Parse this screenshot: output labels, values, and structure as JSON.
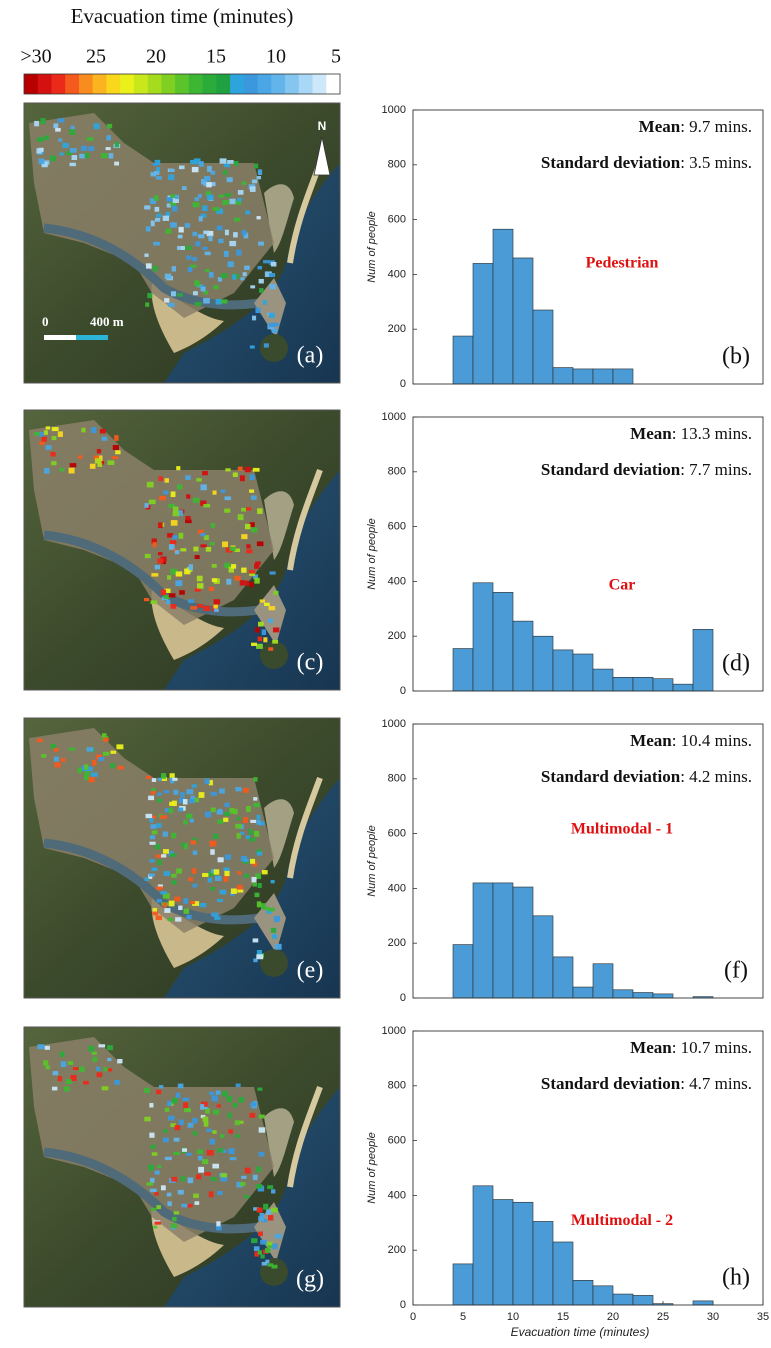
{
  "colorbar": {
    "title": "Evacuation time (minutes)",
    "ticks": [
      {
        "value": 30,
        "label": ">30"
      },
      25,
      20,
      15,
      10,
      5
    ],
    "colors": [
      "#b80000",
      "#d41010",
      "#ec2a1a",
      "#f45a1e",
      "#f98c1f",
      "#fbb41f",
      "#f9d71c",
      "#eaf01a",
      "#c9e81c",
      "#a6dc1e",
      "#7fd022",
      "#5ac42a",
      "#3db733",
      "#2aab3a",
      "#1fa041",
      "#2ea4dc",
      "#3b98dc",
      "#4aa6e4",
      "#62b4ea",
      "#84c6f0",
      "#a8d8f5",
      "#cce8f9",
      "#ffffff"
    ]
  },
  "maps": [
    {
      "label": "(a)"
    },
    {
      "label": "(c)"
    },
    {
      "label": "(e)"
    },
    {
      "label": "(g)"
    }
  ],
  "north": "N",
  "scale_bar": {
    "start": "0",
    "end": "400 m"
  },
  "chart_data": [
    {
      "type": "histogram",
      "color": "#4a9bd6",
      "bins": [
        4,
        6,
        8,
        10,
        12,
        14,
        16,
        18,
        20,
        22
      ],
      "values": [
        175,
        440,
        565,
        460,
        270,
        60,
        55,
        55,
        55
      ],
      "xlim": [
        0,
        35
      ],
      "ylim": [
        0,
        1000
      ],
      "yticks": [
        0,
        200,
        400,
        600,
        800,
        1000
      ],
      "ylabel": "Num of people",
      "mean_label": "Mean",
      "mean_text": ": 9.7 mins.",
      "sd_label": "Standard deviation",
      "sd_text": ": 3.5 mins.",
      "mode": "Pedestrian",
      "panel_label": "(b)"
    },
    {
      "type": "histogram",
      "color": "#4a9bd6",
      "bins": [
        4,
        6,
        8,
        10,
        12,
        14,
        16,
        18,
        20,
        22,
        24,
        26,
        28,
        30
      ],
      "values": [
        155,
        395,
        360,
        255,
        200,
        150,
        135,
        80,
        50,
        50,
        45,
        25,
        225
      ],
      "xlim": [
        0,
        35
      ],
      "ylim": [
        0,
        1000
      ],
      "yticks": [
        0,
        200,
        400,
        600,
        800,
        1000
      ],
      "ylabel": "Num of people",
      "mean_label": "Mean",
      "mean_text": ": 13.3 mins.",
      "sd_label": "Standard deviation",
      "sd_text": ": 7.7 mins.",
      "mode": "Car",
      "panel_label": "(d)"
    },
    {
      "type": "histogram",
      "color": "#4a9bd6",
      "bins": [
        4,
        6,
        8,
        10,
        12,
        14,
        16,
        18,
        20,
        22,
        24,
        26,
        28,
        30
      ],
      "values": [
        195,
        420,
        420,
        405,
        300,
        150,
        40,
        125,
        30,
        20,
        15,
        0,
        5
      ],
      "xlim": [
        0,
        35
      ],
      "ylim": [
        0,
        1000
      ],
      "yticks": [
        0,
        200,
        400,
        600,
        800,
        1000
      ],
      "ylabel": "Num of people",
      "mean_label": "Mean",
      "mean_text": ": 10.4 mins.",
      "sd_label": "Standard deviation",
      "sd_text": ": 4.2 mins.",
      "mode": "Multimodal - 1",
      "panel_label": "(f)"
    },
    {
      "type": "histogram",
      "color": "#4a9bd6",
      "bins": [
        4,
        6,
        8,
        10,
        12,
        14,
        16,
        18,
        20,
        22,
        24,
        26,
        28,
        30
      ],
      "values": [
        150,
        435,
        385,
        375,
        305,
        230,
        90,
        70,
        40,
        35,
        5,
        0,
        15
      ],
      "xlim": [
        0,
        35
      ],
      "ylim": [
        0,
        1000
      ],
      "yticks": [
        0,
        200,
        400,
        600,
        800,
        1000
      ],
      "xticks": [
        0,
        5,
        10,
        15,
        20,
        25,
        30,
        35
      ],
      "ylabel": "Num of people",
      "xlabel": "Evacuation time (minutes)",
      "mean_label": "Mean",
      "mean_text": ": 10.7 mins.",
      "sd_label": "Standard deviation",
      "sd_text": ": 4.7 mins.",
      "mode": "Multimodal - 2",
      "panel_label": "(h)"
    }
  ]
}
